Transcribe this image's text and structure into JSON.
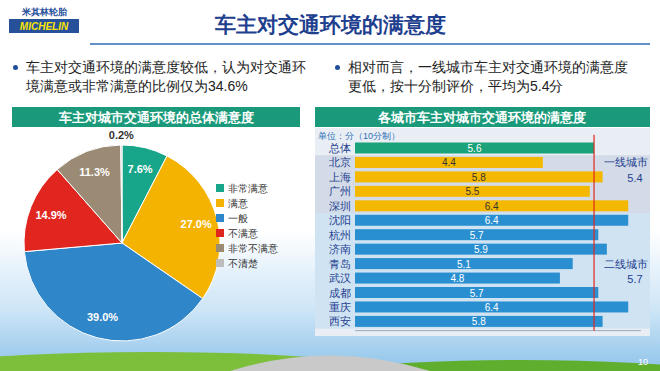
{
  "header": {
    "logo_cn": "米其林轮胎",
    "logo_en": "MICHELIN",
    "title": "车主对交通环境的满意度"
  },
  "bullets": [
    "车主对交通环境的满意度较低，认为对交通环境满意或非常满意的比例仅为34.6%",
    "相对而言，一线城市车主对交通环境的满意度更低，按十分制评价，平均为5.4分"
  ],
  "page_number": 10,
  "chart_data": [
    {
      "type": "pie",
      "title": "车主对城市交通环境的总体满意度",
      "categories": [
        "非常满意",
        "满意",
        "一般",
        "不满意",
        "非常不满意",
        "不清楚"
      ],
      "values": [
        7.6,
        27.0,
        39.0,
        14.9,
        11.3,
        0.2
      ],
      "value_labels": [
        "7.6%",
        "27.0%",
        "39.0%",
        "14.9%",
        "11.3%",
        "0.2%"
      ],
      "colors": [
        "#17a689",
        "#f5b301",
        "#2f86c8",
        "#e0261f",
        "#9b8a74",
        "#bdbdbd"
      ],
      "data_labels": true,
      "legend": "right"
    },
    {
      "type": "bar",
      "title": "各城市车主对城市交通环境的满意度",
      "subtitle": "单位：分（10分制）",
      "orientation": "horizontal",
      "categories": [
        "总体",
        "北京",
        "上海",
        "广州",
        "深圳",
        "沈阳",
        "杭州",
        "济南",
        "青岛",
        "武汉",
        "成都",
        "重庆",
        "西安"
      ],
      "values": [
        5.6,
        4.4,
        5.8,
        5.5,
        6.4,
        6.4,
        5.7,
        5.9,
        5.1,
        4.8,
        5.7,
        6.4,
        5.8
      ],
      "colors": [
        "#1aa37a",
        "#f5b800",
        "#f5b800",
        "#f5b800",
        "#f5b800",
        "#2a8fd0",
        "#2a8fd0",
        "#2a8fd0",
        "#2a8fd0",
        "#2a8fd0",
        "#2a8fd0",
        "#2a8fd0",
        "#2a8fd0"
      ],
      "xlim": [
        0,
        6.7
      ],
      "tick_labels": false,
      "data_labels": true,
      "reference_line": 5.6,
      "groups": [
        {
          "label": "一线城市",
          "value": 5.4,
          "members": [
            "北京",
            "上海",
            "广州",
            "深圳"
          ]
        },
        {
          "label": "二线城市",
          "value": 5.7,
          "members": [
            "沈阳",
            "杭州",
            "济南",
            "青岛",
            "武汉",
            "成都",
            "重庆",
            "西安"
          ]
        }
      ]
    }
  ]
}
